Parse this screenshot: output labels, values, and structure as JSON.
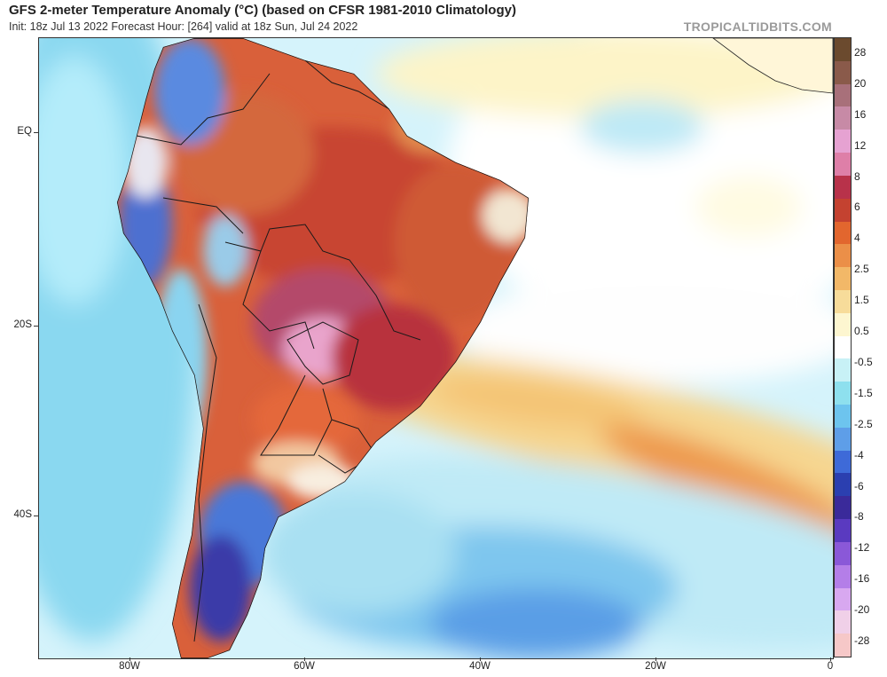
{
  "header": {
    "title": "GFS 2-meter Temperature Anomaly (°C) (based on CFSR 1981-2010 Climatology)",
    "subtitle": "Init: 18z Jul 13 2022   Forecast Hour: [264]   valid at 18z Sun, Jul 24 2022",
    "brand": "TROPICALTIDBITS.COM"
  },
  "axes": {
    "lat_labels": [
      "EQ",
      "20S",
      "40S"
    ],
    "lon_labels": [
      "80W",
      "60W",
      "40W",
      "20W",
      "0"
    ]
  },
  "colorbar": {
    "labels": [
      "28",
      "20",
      "16",
      "12",
      "8",
      "6",
      "4",
      "2.5",
      "1.5",
      "0.5",
      "-0.5",
      "-1.5",
      "-2.5",
      "-4",
      "-6",
      "-8",
      "-12",
      "-16",
      "-20",
      "-28"
    ],
    "colors": [
      "#6b4a2e",
      "#8a5a4a",
      "#a8707a",
      "#c78aa6",
      "#e6a2d2",
      "#de7fa8",
      "#b8324a",
      "#c44230",
      "#e2662e",
      "#eb8f48",
      "#f2b868",
      "#f7dc9a",
      "#fdf6d0",
      "#ffffff",
      "#c8f1f6",
      "#8ee0ee",
      "#6dc4ee",
      "#5e9ee8",
      "#3e6ad8",
      "#2b3fb0",
      "#3a2a9a",
      "#5a3ac0",
      "#8a58d8",
      "#b47ee8",
      "#d8a8f0",
      "#f0d0e8",
      "#f6c8c8"
    ]
  }
}
